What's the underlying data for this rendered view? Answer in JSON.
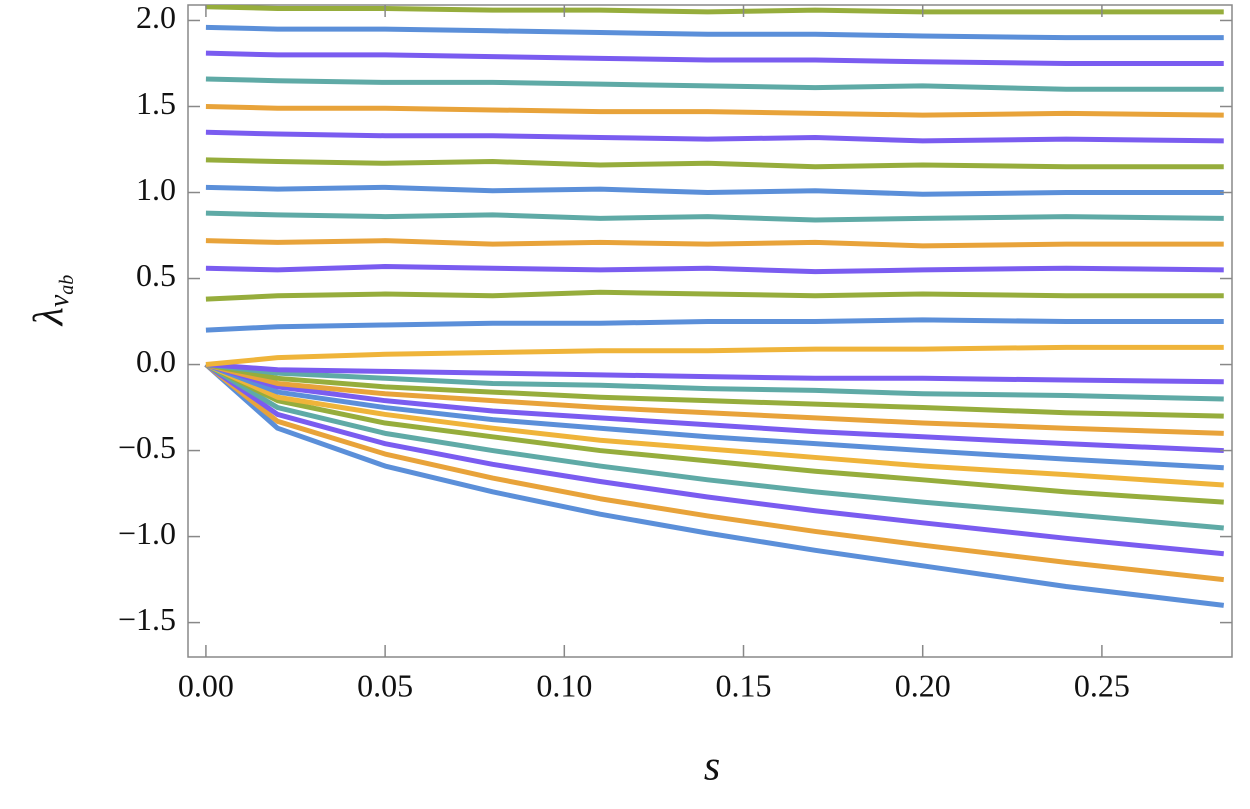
{
  "chart_data": {
    "type": "line",
    "xlabel": "s",
    "ylabel": "λ",
    "ylabel_sub": "v",
    "ylabel_subsub": "ab",
    "x": [
      0,
      0.02,
      0.05,
      0.08,
      0.11,
      0.14,
      0.17,
      0.2,
      0.24,
      0.284
    ],
    "xlim": [
      -0.005,
      0.2863
    ],
    "ylim": [
      -1.7,
      2.09
    ],
    "xticks": [
      {
        "value": 0,
        "label": "0.00"
      },
      {
        "value": 0.05,
        "label": "0.05"
      },
      {
        "value": 0.1,
        "label": "0.10"
      },
      {
        "value": 0.15,
        "label": "0.15"
      },
      {
        "value": 0.2,
        "label": "0.20"
      },
      {
        "value": 0.25,
        "label": "0.25"
      }
    ],
    "yticks": [
      {
        "value": -1.5,
        "label": "−1.5"
      },
      {
        "value": -1,
        "label": "−1.0"
      },
      {
        "value": -0.5,
        "label": "−0.5"
      },
      {
        "value": 0,
        "label": "0.0"
      },
      {
        "value": 0.5,
        "label": "0.5"
      },
      {
        "value": 1,
        "label": "1.0"
      },
      {
        "value": 1.5,
        "label": "1.5"
      },
      {
        "value": 2,
        "label": "2.0"
      }
    ],
    "series": [
      {
        "color": "#5b8fd9",
        "values": [
          0,
          -0.37,
          -0.59,
          -0.74,
          -0.87,
          -0.98,
          -1.08,
          -1.17,
          -1.29,
          -1.4
        ]
      },
      {
        "color": "#e8a33a",
        "values": [
          0,
          -0.33,
          -0.52,
          -0.66,
          -0.78,
          -0.88,
          -0.97,
          -1.05,
          -1.15,
          -1.25
        ]
      },
      {
        "color": "#7a5cf0",
        "values": [
          0,
          -0.29,
          -0.46,
          -0.58,
          -0.68,
          -0.77,
          -0.85,
          -0.92,
          -1.01,
          -1.1
        ]
      },
      {
        "color": "#5faaa6",
        "values": [
          0,
          -0.25,
          -0.4,
          -0.5,
          -0.59,
          -0.67,
          -0.74,
          -0.8,
          -0.87,
          -0.95
        ]
      },
      {
        "color": "#96ad3c",
        "values": [
          0,
          -0.21,
          -0.34,
          -0.42,
          -0.5,
          -0.56,
          -0.62,
          -0.67,
          -0.74,
          -0.8
        ]
      },
      {
        "color": "#efb43a",
        "values": [
          0,
          -0.19,
          -0.29,
          -0.37,
          -0.44,
          -0.49,
          -0.54,
          -0.59,
          -0.64,
          -0.7
        ]
      },
      {
        "color": "#5b8fd9",
        "values": [
          0,
          -0.16,
          -0.25,
          -0.32,
          -0.37,
          -0.42,
          -0.46,
          -0.5,
          -0.55,
          -0.6
        ]
      },
      {
        "color": "#7a5cf0",
        "values": [
          0,
          -0.13,
          -0.21,
          -0.27,
          -0.31,
          -0.35,
          -0.39,
          -0.42,
          -0.46,
          -0.5
        ]
      },
      {
        "color": "#e8a33a",
        "values": [
          0,
          -0.11,
          -0.17,
          -0.21,
          -0.25,
          -0.28,
          -0.31,
          -0.34,
          -0.37,
          -0.4
        ]
      },
      {
        "color": "#96ad3c",
        "values": [
          0,
          -0.08,
          -0.13,
          -0.16,
          -0.19,
          -0.21,
          -0.23,
          -0.25,
          -0.28,
          -0.3
        ]
      },
      {
        "color": "#5faaa6",
        "values": [
          0,
          -0.05,
          -0.08,
          -0.11,
          -0.12,
          -0.14,
          -0.15,
          -0.17,
          -0.18,
          -0.2
        ]
      },
      {
        "color": "#7a5cf0",
        "values": [
          0,
          -0.03,
          -0.04,
          -0.05,
          -0.06,
          -0.07,
          -0.08,
          -0.08,
          -0.09,
          -0.1
        ]
      },
      {
        "color": "#efb43a",
        "values": [
          0,
          0.04,
          0.06,
          0.07,
          0.08,
          0.08,
          0.09,
          0.09,
          0.1,
          0.1
        ]
      },
      {
        "color": "#5b8fd9",
        "values": [
          0.2,
          0.22,
          0.23,
          0.24,
          0.24,
          0.25,
          0.25,
          0.26,
          0.25,
          0.25
        ]
      },
      {
        "color": "#96ad3c",
        "values": [
          0.38,
          0.4,
          0.41,
          0.4,
          0.42,
          0.41,
          0.4,
          0.41,
          0.4,
          0.4
        ]
      },
      {
        "color": "#7a5cf0",
        "values": [
          0.56,
          0.55,
          0.57,
          0.56,
          0.55,
          0.56,
          0.54,
          0.55,
          0.56,
          0.55
        ]
      },
      {
        "color": "#e8a33a",
        "values": [
          0.72,
          0.71,
          0.72,
          0.7,
          0.71,
          0.7,
          0.71,
          0.69,
          0.7,
          0.7
        ]
      },
      {
        "color": "#5faaa6",
        "values": [
          0.88,
          0.87,
          0.86,
          0.87,
          0.85,
          0.86,
          0.84,
          0.85,
          0.86,
          0.85
        ]
      },
      {
        "color": "#5b8fd9",
        "values": [
          1.03,
          1.02,
          1.03,
          1.01,
          1.02,
          1.0,
          1.01,
          0.99,
          1.0,
          1.0
        ]
      },
      {
        "color": "#96ad3c",
        "values": [
          1.19,
          1.18,
          1.17,
          1.18,
          1.16,
          1.17,
          1.15,
          1.16,
          1.15,
          1.15
        ]
      },
      {
        "color": "#7a5cf0",
        "values": [
          1.35,
          1.34,
          1.33,
          1.33,
          1.32,
          1.31,
          1.32,
          1.3,
          1.31,
          1.3
        ]
      },
      {
        "color": "#e8a33a",
        "values": [
          1.5,
          1.49,
          1.49,
          1.48,
          1.47,
          1.47,
          1.46,
          1.45,
          1.46,
          1.45
        ]
      },
      {
        "color": "#5faaa6",
        "values": [
          1.66,
          1.65,
          1.64,
          1.64,
          1.63,
          1.62,
          1.61,
          1.62,
          1.6,
          1.6
        ]
      },
      {
        "color": "#7a5cf0",
        "values": [
          1.81,
          1.8,
          1.8,
          1.79,
          1.78,
          1.77,
          1.77,
          1.76,
          1.75,
          1.75
        ]
      },
      {
        "color": "#5b8fd9",
        "values": [
          1.96,
          1.95,
          1.95,
          1.94,
          1.93,
          1.92,
          1.92,
          1.91,
          1.9,
          1.9
        ]
      },
      {
        "color": "#96ad3c",
        "values": [
          2.08,
          2.07,
          2.07,
          2.06,
          2.06,
          2.05,
          2.06,
          2.05,
          2.05,
          2.05
        ]
      }
    ]
  }
}
